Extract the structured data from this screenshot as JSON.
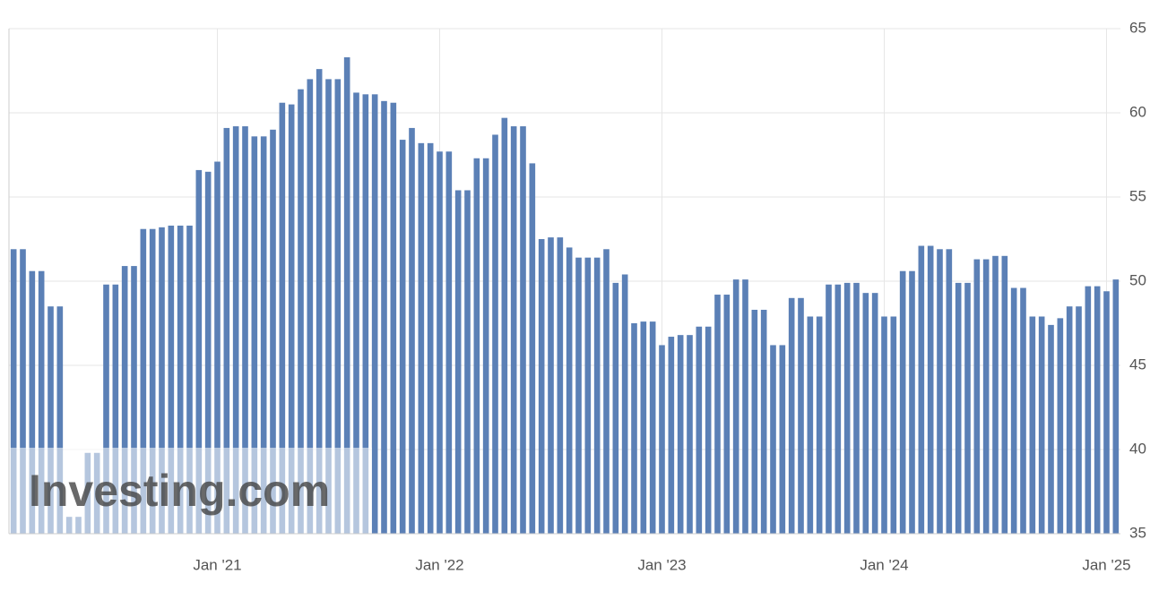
{
  "chart_data": {
    "type": "bar",
    "watermark": "Investing.com",
    "categories": [
      null,
      null,
      null,
      null,
      null,
      null,
      null,
      null,
      null,
      null,
      null,
      null,
      null,
      null,
      null,
      null,
      null,
      null,
      null,
      null,
      null,
      null,
      "Jan '21",
      null,
      null,
      null,
      null,
      null,
      null,
      null,
      null,
      null,
      null,
      null,
      null,
      null,
      null,
      null,
      null,
      null,
      null,
      null,
      null,
      null,
      null,
      null,
      "Jan '22",
      null,
      null,
      null,
      null,
      null,
      null,
      null,
      null,
      null,
      null,
      null,
      null,
      null,
      null,
      null,
      null,
      null,
      null,
      null,
      null,
      null,
      null,
      null,
      "Jan '23",
      null,
      null,
      null,
      null,
      null,
      null,
      null,
      null,
      null,
      null,
      null,
      null,
      null,
      null,
      null,
      null,
      null,
      null,
      null,
      null,
      null,
      null,
      null,
      "Jan '24",
      null,
      null,
      null,
      null,
      null,
      null,
      null,
      null,
      null,
      null,
      null,
      null,
      null,
      null,
      null,
      null,
      null,
      null,
      null,
      null,
      null,
      null,
      null,
      "Jan '25",
      null
    ],
    "values": [
      51.9,
      51.9,
      50.6,
      50.6,
      48.5,
      48.5,
      36,
      36,
      39.8,
      39.8,
      49.8,
      49.8,
      50.9,
      50.9,
      53.1,
      53.1,
      53.2,
      53.3,
      53.3,
      53.3,
      56.6,
      56.5,
      57.1,
      59.1,
      59.2,
      59.2,
      58.6,
      58.6,
      59.0,
      60.6,
      60.5,
      61.4,
      62.0,
      62.6,
      62.0,
      62.0,
      63.3,
      61.2,
      61.1,
      61.1,
      60.7,
      60.6,
      58.4,
      59.1,
      58.2,
      58.2,
      57.7,
      57.7,
      55.4,
      55.4,
      57.3,
      57.3,
      58.7,
      59.7,
      59.2,
      59.2,
      57.0,
      52.5,
      52.6,
      52.6,
      52.0,
      51.4,
      51.4,
      51.4,
      51.9,
      49.9,
      50.4,
      47.5,
      47.6,
      47.6,
      46.2,
      46.7,
      46.8,
      46.8,
      47.3,
      47.3,
      49.2,
      49.2,
      50.1,
      50.1,
      48.3,
      48.3,
      46.2,
      46.2,
      49.0,
      49.0,
      47.9,
      47.9,
      49.8,
      49.8,
      49.9,
      49.9,
      49.3,
      49.3,
      47.9,
      47.9,
      50.6,
      50.6,
      52.1,
      52.1,
      51.9,
      51.9,
      49.9,
      49.9,
      51.3,
      51.3,
      51.5,
      51.5,
      49.6,
      49.6,
      47.9,
      47.9,
      47.4,
      47.8,
      48.5,
      48.5,
      49.7,
      49.7,
      49.4,
      50.1
    ],
    "color": "#5b80b6",
    "ylim": [
      35,
      65
    ],
    "yticks": [
      35,
      40,
      45,
      50,
      55,
      60,
      65
    ],
    "grid": true
  }
}
